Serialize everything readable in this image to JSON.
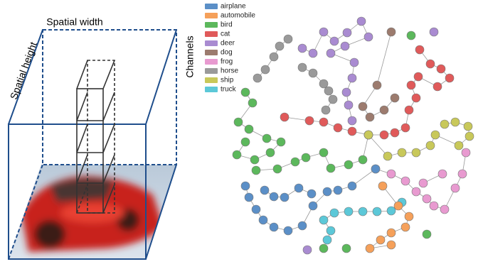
{
  "box": {
    "width_label": "Spatial width",
    "height_label": "Spatial height",
    "channels_label": "Channels"
  },
  "legend": [
    {
      "name": "airplane",
      "color": "#5b8fc7"
    },
    {
      "name": "automobile",
      "color": "#f5a05a"
    },
    {
      "name": "bird",
      "color": "#5cb85c"
    },
    {
      "name": "cat",
      "color": "#e05a5a"
    },
    {
      "name": "deer",
      "color": "#a98bd1"
    },
    {
      "name": "dog",
      "color": "#9c7b6e"
    },
    {
      "name": "frog",
      "color": "#e89ad0"
    },
    {
      "name": "horse",
      "color": "#9a9a9a"
    },
    {
      "name": "ship",
      "color": "#c8c85a"
    },
    {
      "name": "truck",
      "color": "#5cc8d8"
    }
  ]
}
